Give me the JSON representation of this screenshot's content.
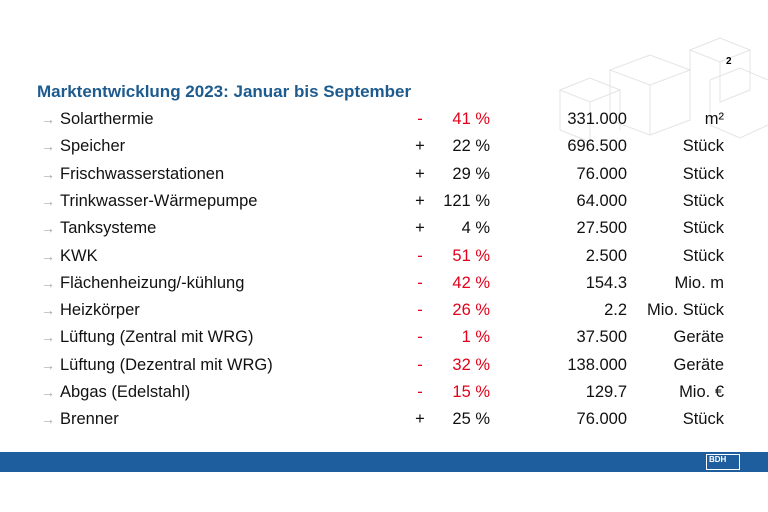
{
  "page_number": "2",
  "title": "Marktentwicklung 2023: Januar bis September",
  "table": {
    "rows": [
      [
        "Solarthermie",
        "-",
        "41 %",
        "331.000",
        "m²"
      ],
      [
        "Speicher",
        "+",
        "22 %",
        "696.500",
        "Stück"
      ],
      [
        "Frischwasserstationen",
        "+",
        "29 %",
        "76.000",
        "Stück"
      ],
      [
        "Trinkwasser-Wärmepumpe",
        "+",
        "121 %",
        "64.000",
        "Stück"
      ],
      [
        "Tanksysteme",
        "+",
        "4 %",
        "27.500",
        "Stück"
      ],
      [
        "KWK",
        "-",
        "51 %",
        "2.500",
        "Stück"
      ],
      [
        "Flächenheizung/-kühlung",
        "-",
        "42 %",
        "154.3",
        "Mio. m"
      ],
      [
        "Heizkörper",
        "-",
        "26 %",
        "2.2",
        "Mio. Stück"
      ],
      [
        "Lüftung (Zentral mit WRG)",
        "-",
        "1 %",
        "37.500",
        "Geräte"
      ],
      [
        "Lüftung (Dezentral mit WRG)",
        "-",
        "32 %",
        "138.000",
        "Geräte"
      ],
      [
        "Abgas (Edelstahl)",
        "-",
        "15 %",
        "129.7",
        "Mio. €"
      ],
      [
        "Brenner",
        "+",
        "25 %",
        "76.000",
        "Stück"
      ]
    ]
  },
  "footer": {
    "logo": "BDH"
  }
}
